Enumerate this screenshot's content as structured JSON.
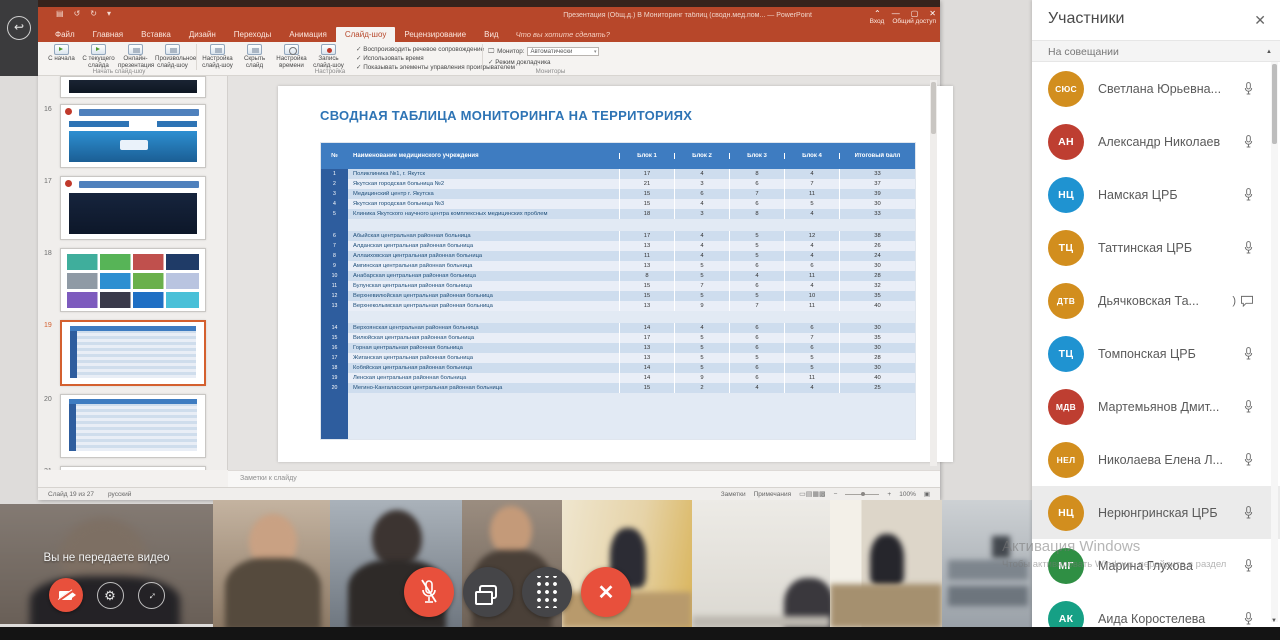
{
  "colors": {
    "ppt-orange": "#B7472A",
    "slide-title": "#2E74B5",
    "table-header": "#3E7CC1",
    "num-col": "#2E5D9E",
    "row-dark": "#CEDDEE",
    "row-light": "#E9EEF7",
    "row-spacer": "#E2EAF4",
    "control-red": "#E8503C",
    "control-dark": "#454548"
  },
  "app": {
    "back_glyph": "↩"
  },
  "powerpoint": {
    "titlebar": {
      "title": "Презентация (Общ.д.) В Мониторинг таблиц (сводн.мед.пом... — PowerPoint",
      "qat_icons": [
        "▤",
        "↺",
        "↻",
        "▾"
      ],
      "window_controls": [
        "⌃",
        "—",
        "▢",
        "✕"
      ],
      "signin_label": "Вход",
      "share_label": "Общий доступ"
    },
    "tabs": [
      "Файл",
      "Главная",
      "Вставка",
      "Дизайн",
      "Переходы",
      "Анимация",
      "Слайд-шоу",
      "Рецензирование",
      "Вид"
    ],
    "selected_tab": "Слайд-шоу",
    "tellme": "Что вы хотите сделать?",
    "ribbon": {
      "groups": [
        "Начать слайд-шоу",
        "Настройка",
        "Мониторы"
      ],
      "buttons_group1": [
        {
          "label": "С начала",
          "icon": "play-from-start-icon",
          "style": "play"
        },
        {
          "label": "С текущего слайда",
          "icon": "play-current-slide-icon",
          "style": "play"
        },
        {
          "label": "Онлайн-презентация",
          "icon": "online-presentation-icon",
          "style": "gray"
        },
        {
          "label": "Произвольное слайд-шоу",
          "icon": "custom-slideshow-icon",
          "style": "gray"
        }
      ],
      "buttons_group2": [
        {
          "label": "Настройка слайд-шоу",
          "icon": "setup-slideshow-icon",
          "style": "gray"
        },
        {
          "label": "Скрыть слайд",
          "icon": "hide-slide-icon",
          "style": "gray"
        },
        {
          "label": "Настройка времени",
          "icon": "rehearse-timings-icon",
          "style": "clock"
        },
        {
          "label": "Запись слайд-шоу",
          "icon": "record-slideshow-icon",
          "style": "rec"
        }
      ],
      "checkboxes": [
        "Воспроизводить речевое сопровождение",
        "Использовать время",
        "Показывать элементы управления проигрывателем"
      ],
      "monitor_label": "Монитор:",
      "monitor_value": "Автоматически",
      "presenter_checkbox": "Режим докладчика"
    },
    "thumbnails": [
      {
        "num": "16"
      },
      {
        "num": "17"
      },
      {
        "num": "18"
      },
      {
        "num": "19"
      },
      {
        "num": "20"
      },
      {
        "num": "21"
      }
    ],
    "notes_placeholder": "Заметки к слайду",
    "statusbar": {
      "slide_info": "Слайд 19 из 27",
      "language": "русский",
      "notes_btn": "Заметки",
      "comments_btn": "Примечания",
      "zoom_value": "100%",
      "view_icons": [
        "▭",
        "▤",
        "▦",
        "▩"
      ],
      "zoom_minus": "−",
      "zoom_plus": "+",
      "fit_icon": "▣"
    }
  },
  "chart_data": {
    "type": "table",
    "title": "СВОДНАЯ ТАБЛИЦА МОНИТОРИНГА НА ТЕРРИТОРИЯХ",
    "columns": [
      "№",
      "Наименование медицинского учреждения",
      "Блок 1",
      "Блок 2",
      "Блок 3",
      "Блок 4",
      "Итоговый балл"
    ],
    "rows": [
      [
        1,
        "Поликлиника №1, г. Якутск",
        17,
        4,
        8,
        4,
        33
      ],
      [
        2,
        "Якутская городская больница №2",
        21,
        3,
        6,
        7,
        37
      ],
      [
        3,
        "Медицинский центр г. Якутска",
        15,
        6,
        7,
        11,
        39
      ],
      [
        4,
        "Якутская городская больница №3",
        15,
        4,
        6,
        5,
        30
      ],
      [
        5,
        "Клиника Якутского научного центра комплексных медицинских проблем",
        18,
        3,
        8,
        4,
        33
      ],
      [
        6,
        "Абыйская центральная районная больница",
        17,
        4,
        5,
        12,
        38
      ],
      [
        7,
        "Алданская центральная районная больница",
        13,
        4,
        5,
        4,
        26
      ],
      [
        8,
        "Аллаиховская центральная районная больница",
        11,
        4,
        5,
        4,
        24
      ],
      [
        9,
        "Амгинская центральная районная больница",
        13,
        5,
        6,
        6,
        30
      ],
      [
        10,
        "Анабарская центральная районная больница",
        8,
        5,
        4,
        11,
        28
      ],
      [
        11,
        "Булунская центральная районная больница",
        15,
        7,
        6,
        4,
        32
      ],
      [
        12,
        "Верхневилюйская центральная районная больница",
        15,
        5,
        5,
        10,
        35
      ],
      [
        13,
        "Верхнеколымская центральная районная больница",
        13,
        9,
        7,
        11,
        40
      ],
      [
        14,
        "Верхоянская центральная районная больница",
        14,
        4,
        6,
        6,
        30
      ],
      [
        15,
        "Вилюйская центральная районная больница",
        17,
        5,
        6,
        7,
        35
      ],
      [
        16,
        "Горная центральная районная больница",
        13,
        5,
        6,
        6,
        30
      ],
      [
        17,
        "Жиганская центральная районная больница",
        13,
        5,
        5,
        5,
        28
      ],
      [
        18,
        "Кобяйская центральная районная больница",
        14,
        5,
        6,
        5,
        30
      ],
      [
        19,
        "Ленская центральная районная больница",
        14,
        9,
        6,
        11,
        40
      ],
      [
        20,
        "Мегино-Кангаласская центральная районная больница",
        15,
        2,
        4,
        4,
        25
      ]
    ],
    "section_breaks_after": [
      5,
      13
    ],
    "legend_position": "none",
    "grid": true
  },
  "participants_panel": {
    "title": "Участники",
    "close_glyph": "✕",
    "section": "На совещании",
    "participants": [
      {
        "initials": "СЮС",
        "name": "Светлана Юрьевна...",
        "color": "#D28E1E",
        "icons": [
          "mic"
        ],
        "highlighted": false
      },
      {
        "initials": "АН",
        "name": "Александр Николаев",
        "color": "#BE3E31",
        "icons": [
          "mic"
        ],
        "highlighted": false
      },
      {
        "initials": "НЦ",
        "name": "Намская ЦРБ",
        "color": "#1F93D1",
        "icons": [
          "mic"
        ],
        "highlighted": false
      },
      {
        "initials": "ТЦ",
        "name": "Таттинская ЦРБ",
        "color": "#D28E1E",
        "icons": [
          "mic"
        ],
        "highlighted": false
      },
      {
        "initials": "ДТВ",
        "name": "Дьячковская Та...",
        "color": "#D28E1E",
        "icons": [
          "sound",
          "im"
        ],
        "highlighted": false
      },
      {
        "initials": "ТЦ",
        "name": "Томпонская ЦРБ",
        "color": "#1F93D1",
        "icons": [
          "mic"
        ],
        "highlighted": false
      },
      {
        "initials": "МДВ",
        "name": "Мартемьянов Дмит...",
        "color": "#BE3E31",
        "icons": [
          "mic"
        ],
        "highlighted": false
      },
      {
        "initials": "НЕЛ",
        "name": "Николаева Елена Л...",
        "color": "#D28E1E",
        "icons": [
          "mic"
        ],
        "highlighted": false
      },
      {
        "initials": "НЦ",
        "name": "Нерюнгринская ЦРБ",
        "color": "#D28E1E",
        "icons": [
          "mic"
        ],
        "highlighted": true
      },
      {
        "initials": "МГ",
        "name": "Марина Глухова",
        "color": "#2F8F44",
        "icons": [
          "mic"
        ],
        "highlighted": false
      },
      {
        "initials": "АК",
        "name": "Аида Коростелева",
        "color": "#16A085",
        "icons": [
          "mic"
        ],
        "highlighted": false
      }
    ]
  },
  "selfview": {
    "label": "Вы не передаете видео"
  },
  "controls": {
    "buttons": [
      {
        "name": "mute-microphone",
        "icon": "mic-off-icon"
      },
      {
        "name": "share-screen",
        "icon": "share-screen-icon"
      },
      {
        "name": "dialpad",
        "icon": "dialpad-icon"
      },
      {
        "name": "end-call",
        "icon": "end-call-icon"
      }
    ]
  },
  "watermark": {
    "line1": "Активация Windows",
    "line2": "Чтобы активировать Windows, перейдите в раздел"
  }
}
